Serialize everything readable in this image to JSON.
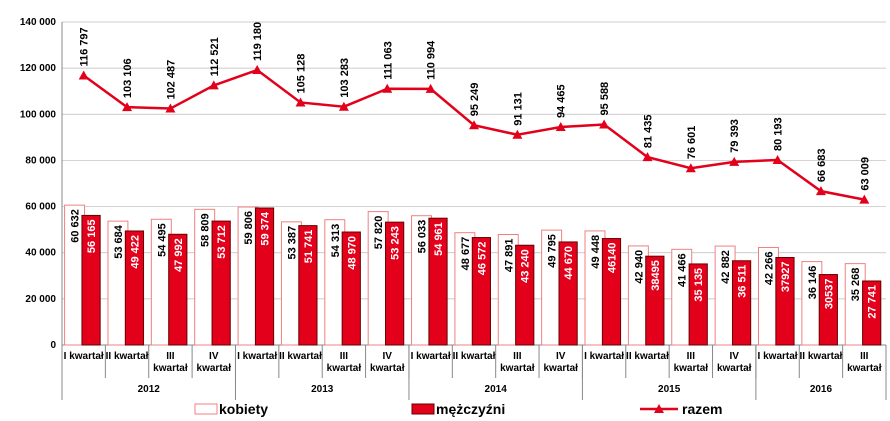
{
  "chart_data": {
    "type": "bar-line",
    "categories": [
      "I kwartał",
      "II kwartał",
      "III kwartał",
      "IV kwartał",
      "I kwartał",
      "II kwartał",
      "III kwartał",
      "IV kwartał",
      "I kwartał",
      "II kwartał",
      "III kwartał",
      "IV kwartał",
      "I kwartał",
      "II kwartał",
      "III kwartał",
      "IV kwartał",
      "I kwartał",
      "II kwartał",
      "III kwartał"
    ],
    "groups": [
      {
        "label": "2012",
        "count": 4
      },
      {
        "label": "2013",
        "count": 4
      },
      {
        "label": "2014",
        "count": 4
      },
      {
        "label": "2015",
        "count": 4
      },
      {
        "label": "2016",
        "count": 3
      }
    ],
    "series": [
      {
        "name": "kobiety",
        "kind": "bar",
        "color": "#f08080",
        "values": [
          60632,
          53684,
          54495,
          58809,
          59806,
          53387,
          54313,
          57820,
          56033,
          48677,
          47891,
          49795,
          49448,
          42940,
          41466,
          42882,
          42266,
          36146,
          35268
        ],
        "value_labels": [
          "60 632",
          "53 684",
          "54 495",
          "58 809",
          "59 806",
          "53 387",
          "54 313",
          "57 820",
          "56 033",
          "48 677",
          "47 891",
          "49 795",
          "49 448",
          "42 940",
          "41 466",
          "42 882",
          "42 266",
          "36 146",
          "35 268"
        ]
      },
      {
        "name": "mężczyźni",
        "kind": "bar",
        "color": "#e3001b",
        "values": [
          56165,
          49422,
          47992,
          53712,
          59374,
          51741,
          48970,
          53243,
          54961,
          46572,
          43240,
          44670,
          46140,
          38495,
          35135,
          36511,
          37927,
          30537,
          27741
        ],
        "value_labels": [
          "56 165",
          "49 422",
          "47 992",
          "53 712",
          "59 374",
          "51 741",
          "48 970",
          "53 243",
          "54 961",
          "46 572",
          "43 240",
          "44 670",
          "46140",
          "38495",
          "35 135",
          "36 511",
          "37927",
          "30537",
          "27 741"
        ]
      },
      {
        "name": "razem",
        "kind": "line",
        "color": "#e3001b",
        "values": [
          116797,
          103106,
          102487,
          112521,
          119180,
          105128,
          103283,
          111063,
          110994,
          95249,
          91131,
          94465,
          95588,
          81435,
          76601,
          79393,
          80193,
          66683,
          63009
        ],
        "value_labels": [
          "116 797",
          "103 106",
          "102 487",
          "112 521",
          "119 180",
          "105 128",
          "103 283",
          "111 063",
          "110 994",
          "95 249",
          "91 131",
          "94 465",
          "95 588",
          "81 435",
          "76 601",
          "79 393",
          "80 193",
          "66 683",
          "63 009"
        ]
      }
    ],
    "ylim": [
      0,
      140000
    ],
    "yticks": [
      0,
      {
        "value": 20000,
        "label": "20 000"
      },
      {
        "value": 40000,
        "label": "40 000"
      },
      {
        "value": 60000,
        "label": "60 000"
      },
      {
        "value": 80000,
        "label": "80 000"
      },
      {
        "value": 100000,
        "label": "100 000"
      },
      {
        "value": 120000,
        "label": "120 000"
      },
      {
        "value": 140000,
        "label": "140 000"
      }
    ],
    "grid": true
  }
}
